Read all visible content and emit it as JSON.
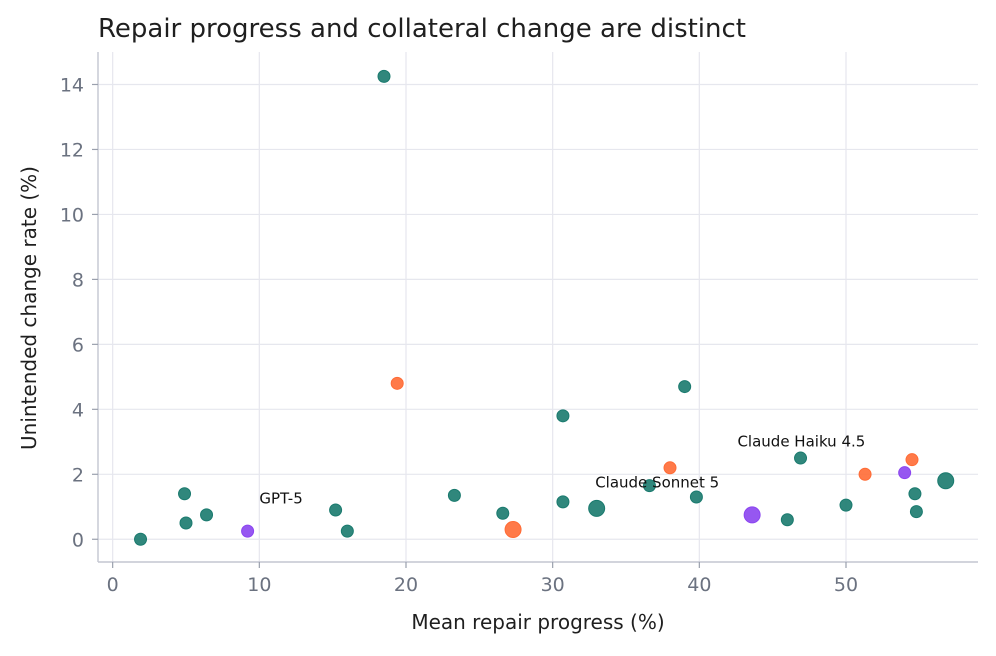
{
  "chart_data": {
    "type": "scatter",
    "title": "Repair progress and collateral change are distinct",
    "xlabel": "Mean repair progress (%)",
    "ylabel": "Unintended change rate (%)",
    "xlim": [
      -1,
      59
    ],
    "ylim": [
      -0.7,
      15.0
    ],
    "xticks": [
      0,
      10,
      20,
      30,
      40,
      50
    ],
    "yticks": [
      0,
      2,
      4,
      6,
      8,
      10,
      12,
      14
    ],
    "grid": true,
    "colors": {
      "teal": "#1a7a6e",
      "orange": "#ff6b35",
      "purple": "#8b45f0"
    },
    "points": [
      {
        "x": 1.9,
        "y": 0.0,
        "color": "teal",
        "size": "md"
      },
      {
        "x": 4.9,
        "y": 1.4,
        "color": "teal",
        "size": "md"
      },
      {
        "x": 5.0,
        "y": 0.5,
        "color": "teal",
        "size": "md"
      },
      {
        "x": 6.4,
        "y": 0.75,
        "color": "teal",
        "size": "md"
      },
      {
        "x": 9.2,
        "y": 0.25,
        "color": "purple",
        "size": "md"
      },
      {
        "x": 15.2,
        "y": 0.9,
        "color": "teal",
        "size": "md"
      },
      {
        "x": 16.0,
        "y": 0.25,
        "color": "teal",
        "size": "md"
      },
      {
        "x": 18.5,
        "y": 14.25,
        "color": "teal",
        "size": "md"
      },
      {
        "x": 19.4,
        "y": 4.8,
        "color": "orange",
        "size": "md"
      },
      {
        "x": 23.3,
        "y": 1.35,
        "color": "teal",
        "size": "md"
      },
      {
        "x": 26.6,
        "y": 0.8,
        "color": "teal",
        "size": "md"
      },
      {
        "x": 27.3,
        "y": 0.3,
        "color": "orange",
        "size": "lg"
      },
      {
        "x": 30.7,
        "y": 3.8,
        "color": "teal",
        "size": "md"
      },
      {
        "x": 30.7,
        "y": 1.15,
        "color": "teal",
        "size": "md"
      },
      {
        "x": 33.0,
        "y": 0.95,
        "color": "teal",
        "size": "lg"
      },
      {
        "x": 36.6,
        "y": 1.65,
        "color": "teal",
        "size": "md"
      },
      {
        "x": 38.0,
        "y": 2.2,
        "color": "orange",
        "size": "md"
      },
      {
        "x": 39.0,
        "y": 4.7,
        "color": "teal",
        "size": "md"
      },
      {
        "x": 39.8,
        "y": 1.3,
        "color": "teal",
        "size": "md"
      },
      {
        "x": 43.6,
        "y": 0.75,
        "color": "purple",
        "size": "lg"
      },
      {
        "x": 46.0,
        "y": 0.6,
        "color": "teal",
        "size": "md"
      },
      {
        "x": 46.9,
        "y": 2.5,
        "color": "teal",
        "size": "md"
      },
      {
        "x": 50.0,
        "y": 1.05,
        "color": "teal",
        "size": "md"
      },
      {
        "x": 51.3,
        "y": 2.0,
        "color": "orange",
        "size": "md"
      },
      {
        "x": 54.0,
        "y": 2.05,
        "color": "purple",
        "size": "md"
      },
      {
        "x": 54.5,
        "y": 2.45,
        "color": "orange",
        "size": "md"
      },
      {
        "x": 54.7,
        "y": 1.4,
        "color": "teal",
        "size": "md"
      },
      {
        "x": 54.8,
        "y": 0.85,
        "color": "teal",
        "size": "md"
      },
      {
        "x": 56.8,
        "y": 1.8,
        "color": "teal",
        "size": "lg"
      }
    ],
    "annotations": [
      {
        "text": "GPT-5",
        "x": 10.0,
        "y": 1.1
      },
      {
        "text": "Claude Sonnet 5",
        "x": 32.9,
        "y": 1.6
      },
      {
        "text": "Claude Haiku 4.5",
        "x": 42.6,
        "y": 2.85
      }
    ]
  }
}
